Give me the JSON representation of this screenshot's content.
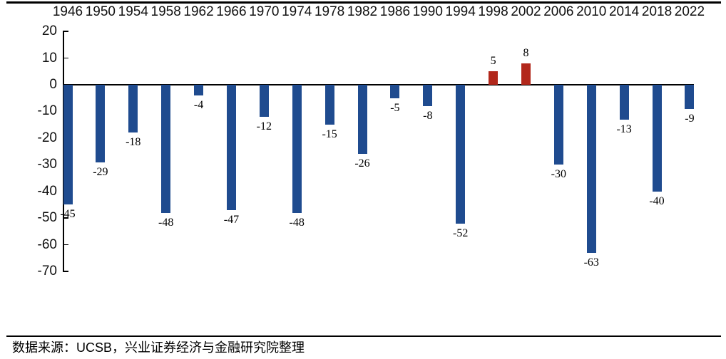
{
  "chart_data": {
    "type": "bar",
    "categories": [
      "1946",
      "1950",
      "1954",
      "1958",
      "1962",
      "1966",
      "1970",
      "1974",
      "1978",
      "1982",
      "1986",
      "1990",
      "1994",
      "1998",
      "2002",
      "2006",
      "2010",
      "2014",
      "2018",
      "2022"
    ],
    "values": [
      -45,
      -29,
      -18,
      -48,
      -4,
      -47,
      -12,
      -48,
      -15,
      -26,
      -5,
      -8,
      -52,
      5,
      8,
      -30,
      -63,
      -13,
      -40,
      -9
    ],
    "title": "",
    "xlabel": "",
    "ylabel": "",
    "ylim": [
      -70,
      20
    ],
    "yticks": [
      20,
      10,
      0,
      -10,
      -20,
      -30,
      -40,
      -50,
      -60,
      -70
    ],
    "x_axis_position": "top",
    "grid": false,
    "legend": false,
    "data_labels": true,
    "bar_negative_color": "#1F4B8F",
    "bar_positive_color": "#B2271B",
    "axis_color": "#000000"
  },
  "footer": {
    "source": "数据来源：UCSB，兴业证券经济与金融研究院整理"
  }
}
